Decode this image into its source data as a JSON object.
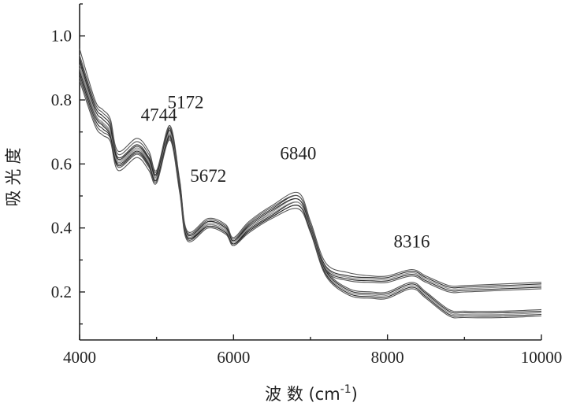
{
  "chart_data": {
    "type": "line",
    "title": "",
    "xlabel": "波 数 (cm",
    "xlabel_sup": "-1",
    "xlabel_close": ")",
    "ylabel": "吸光度",
    "xlim": [
      4000,
      10000
    ],
    "ylim": [
      0.05,
      1.1
    ],
    "x_ticks": [
      4000,
      6000,
      8000,
      10000
    ],
    "x_tick_labels": [
      "4000",
      "6000",
      "8000",
      "10000"
    ],
    "y_ticks": [
      0.2,
      0.4,
      0.6,
      0.8,
      1.0
    ],
    "y_tick_labels": [
      "0.2",
      "0.4",
      "0.6",
      "0.8",
      "1.0"
    ],
    "grid": false,
    "legend": "none",
    "annotations": [
      {
        "text": "4744",
        "x": 4744,
        "y": 0.72
      },
      {
        "text": "5172",
        "x": 5172,
        "y": 0.74
      },
      {
        "text": "5672",
        "x": 5672,
        "y": 0.47
      },
      {
        "text": "6840",
        "x": 6840,
        "y": 0.56
      },
      {
        "text": "8316",
        "x": 8316,
        "y": 0.29
      }
    ],
    "x": [
      4000,
      4200,
      4300,
      4400,
      4500,
      4744,
      4900,
      5000,
      5172,
      5300,
      5400,
      5672,
      5900,
      6000,
      6200,
      6500,
      6840,
      7000,
      7200,
      7500,
      7800,
      8000,
      8316,
      8500,
      8800,
      9000,
      9500,
      10000
    ],
    "series": [
      {
        "group": "upper",
        "values": [
          0.96,
          0.8,
          0.77,
          0.74,
          0.64,
          0.68,
          0.64,
          0.58,
          0.72,
          0.55,
          0.39,
          0.43,
          0.41,
          0.37,
          0.42,
          0.47,
          0.51,
          0.42,
          0.29,
          0.26,
          0.25,
          0.25,
          0.27,
          0.25,
          0.22,
          0.22,
          0.225,
          0.23
        ]
      },
      {
        "group": "upper",
        "values": [
          0.93,
          0.78,
          0.75,
          0.72,
          0.62,
          0.66,
          0.62,
          0.57,
          0.71,
          0.54,
          0.38,
          0.42,
          0.4,
          0.36,
          0.41,
          0.46,
          0.5,
          0.41,
          0.28,
          0.25,
          0.245,
          0.245,
          0.265,
          0.245,
          0.215,
          0.215,
          0.22,
          0.225
        ]
      },
      {
        "group": "upper",
        "values": [
          0.91,
          0.76,
          0.73,
          0.7,
          0.61,
          0.65,
          0.61,
          0.56,
          0.7,
          0.53,
          0.375,
          0.415,
          0.395,
          0.355,
          0.4,
          0.45,
          0.49,
          0.4,
          0.275,
          0.245,
          0.24,
          0.24,
          0.26,
          0.24,
          0.21,
          0.21,
          0.215,
          0.22
        ]
      },
      {
        "group": "upper",
        "values": [
          0.89,
          0.75,
          0.72,
          0.69,
          0.6,
          0.64,
          0.6,
          0.55,
          0.69,
          0.52,
          0.37,
          0.41,
          0.39,
          0.35,
          0.395,
          0.44,
          0.48,
          0.395,
          0.27,
          0.24,
          0.235,
          0.235,
          0.255,
          0.235,
          0.205,
          0.205,
          0.21,
          0.215
        ]
      },
      {
        "group": "upper",
        "values": [
          0.87,
          0.73,
          0.7,
          0.68,
          0.59,
          0.63,
          0.59,
          0.545,
          0.68,
          0.515,
          0.365,
          0.405,
          0.385,
          0.345,
          0.39,
          0.435,
          0.47,
          0.39,
          0.265,
          0.235,
          0.23,
          0.23,
          0.25,
          0.23,
          0.2,
          0.2,
          0.205,
          0.21
        ]
      },
      {
        "group": "lower",
        "values": [
          0.94,
          0.79,
          0.76,
          0.73,
          0.63,
          0.67,
          0.63,
          0.575,
          0.715,
          0.545,
          0.385,
          0.425,
          0.405,
          0.365,
          0.415,
          0.465,
          0.5,
          0.41,
          0.27,
          0.21,
          0.2,
          0.2,
          0.23,
          0.2,
          0.145,
          0.14,
          0.14,
          0.145
        ]
      },
      {
        "group": "lower",
        "values": [
          0.92,
          0.77,
          0.74,
          0.71,
          0.615,
          0.655,
          0.615,
          0.565,
          0.705,
          0.535,
          0.38,
          0.42,
          0.4,
          0.36,
          0.405,
          0.455,
          0.49,
          0.4,
          0.265,
          0.205,
          0.195,
          0.195,
          0.225,
          0.195,
          0.14,
          0.135,
          0.135,
          0.14
        ]
      },
      {
        "group": "lower",
        "values": [
          0.9,
          0.755,
          0.725,
          0.695,
          0.605,
          0.645,
          0.605,
          0.555,
          0.695,
          0.525,
          0.375,
          0.41,
          0.39,
          0.355,
          0.4,
          0.445,
          0.48,
          0.395,
          0.26,
          0.2,
          0.19,
          0.19,
          0.22,
          0.19,
          0.135,
          0.13,
          0.13,
          0.135
        ]
      },
      {
        "group": "lower",
        "values": [
          0.88,
          0.74,
          0.71,
          0.685,
          0.595,
          0.635,
          0.595,
          0.55,
          0.685,
          0.52,
          0.37,
          0.405,
          0.385,
          0.35,
          0.39,
          0.435,
          0.47,
          0.39,
          0.255,
          0.195,
          0.185,
          0.185,
          0.215,
          0.185,
          0.13,
          0.125,
          0.125,
          0.13
        ]
      },
      {
        "group": "lower",
        "values": [
          0.86,
          0.72,
          0.69,
          0.67,
          0.58,
          0.62,
          0.58,
          0.54,
          0.675,
          0.51,
          0.36,
          0.4,
          0.38,
          0.345,
          0.385,
          0.43,
          0.46,
          0.385,
          0.25,
          0.19,
          0.18,
          0.18,
          0.21,
          0.18,
          0.125,
          0.12,
          0.12,
          0.125
        ]
      }
    ],
    "colors": {
      "line_dark": "#2a2a2a",
      "line_mid": "#555555",
      "line_light": "#888888",
      "axis": "#222222"
    }
  }
}
